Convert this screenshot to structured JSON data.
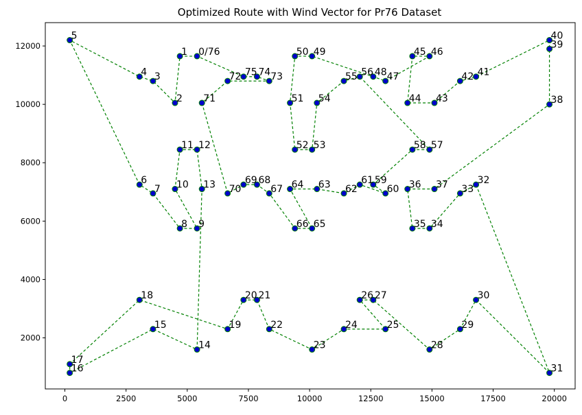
{
  "chart_data": {
    "type": "line",
    "title": "Optimized Route with Wind Vector for Pr76 Dataset",
    "xlabel": "",
    "ylabel": "",
    "xlim": [
      -800,
      20850
    ],
    "ylim": [
      250,
      12800
    ],
    "xticks": [
      0,
      2500,
      5000,
      7500,
      10000,
      12500,
      15000,
      17500,
      20000
    ],
    "yticks": [
      2000,
      4000,
      6000,
      8000,
      10000,
      12000
    ],
    "grid": false,
    "colors": {
      "route": "#008000",
      "point_fill": "#0000cc"
    },
    "points": [
      {
        "label": "0/76",
        "x": 5400,
        "y": 11650
      },
      {
        "label": "1",
        "x": 4700,
        "y": 11650
      },
      {
        "label": "2",
        "x": 4500,
        "y": 10050
      },
      {
        "label": "3",
        "x": 3600,
        "y": 10800
      },
      {
        "label": "4",
        "x": 3050,
        "y": 10950
      },
      {
        "label": "5",
        "x": 200,
        "y": 12200
      },
      {
        "label": "6",
        "x": 3050,
        "y": 7250
      },
      {
        "label": "7",
        "x": 3600,
        "y": 6950
      },
      {
        "label": "8",
        "x": 4700,
        "y": 5750
      },
      {
        "label": "9",
        "x": 5400,
        "y": 5750
      },
      {
        "label": "10",
        "x": 4500,
        "y": 7100
      },
      {
        "label": "11",
        "x": 4700,
        "y": 8450
      },
      {
        "label": "12",
        "x": 5400,
        "y": 8450
      },
      {
        "label": "13",
        "x": 5600,
        "y": 7100
      },
      {
        "label": "14",
        "x": 5400,
        "y": 1600
      },
      {
        "label": "15",
        "x": 3600,
        "y": 2300
      },
      {
        "label": "16",
        "x": 200,
        "y": 800
      },
      {
        "label": "17",
        "x": 200,
        "y": 1100
      },
      {
        "label": "18",
        "x": 3050,
        "y": 3300
      },
      {
        "label": "19",
        "x": 6650,
        "y": 2300
      },
      {
        "label": "20",
        "x": 7300,
        "y": 3300
      },
      {
        "label": "21",
        "x": 7850,
        "y": 3300
      },
      {
        "label": "22",
        "x": 8350,
        "y": 2300
      },
      {
        "label": "23",
        "x": 10100,
        "y": 1600
      },
      {
        "label": "24",
        "x": 11400,
        "y": 2300
      },
      {
        "label": "25",
        "x": 13100,
        "y": 2300
      },
      {
        "label": "26",
        "x": 12050,
        "y": 3300
      },
      {
        "label": "27",
        "x": 12600,
        "y": 3300
      },
      {
        "label": "28",
        "x": 14900,
        "y": 1600
      },
      {
        "label": "29",
        "x": 16150,
        "y": 2300
      },
      {
        "label": "30",
        "x": 16800,
        "y": 3300
      },
      {
        "label": "31",
        "x": 19800,
        "y": 800
      },
      {
        "label": "32",
        "x": 16800,
        "y": 7250
      },
      {
        "label": "33",
        "x": 16150,
        "y": 6950
      },
      {
        "label": "34",
        "x": 14900,
        "y": 5750
      },
      {
        "label": "35",
        "x": 14200,
        "y": 5750
      },
      {
        "label": "36",
        "x": 14000,
        "y": 7100
      },
      {
        "label": "37",
        "x": 15100,
        "y": 7100
      },
      {
        "label": "38",
        "x": 19800,
        "y": 10000
      },
      {
        "label": "39",
        "x": 19800,
        "y": 11900
      },
      {
        "label": "40",
        "x": 19800,
        "y": 12200
      },
      {
        "label": "41",
        "x": 16800,
        "y": 10950
      },
      {
        "label": "42",
        "x": 16150,
        "y": 10800
      },
      {
        "label": "43",
        "x": 15100,
        "y": 10050
      },
      {
        "label": "44",
        "x": 14000,
        "y": 10050
      },
      {
        "label": "45",
        "x": 14200,
        "y": 11650
      },
      {
        "label": "46",
        "x": 14900,
        "y": 11650
      },
      {
        "label": "47",
        "x": 13100,
        "y": 10800
      },
      {
        "label": "48",
        "x": 12600,
        "y": 10950
      },
      {
        "label": "49",
        "x": 10100,
        "y": 11650
      },
      {
        "label": "50",
        "x": 9400,
        "y": 11650
      },
      {
        "label": "51",
        "x": 9200,
        "y": 10050
      },
      {
        "label": "52",
        "x": 9400,
        "y": 8450
      },
      {
        "label": "53",
        "x": 10100,
        "y": 8450
      },
      {
        "label": "54",
        "x": 10300,
        "y": 10050
      },
      {
        "label": "55",
        "x": 11400,
        "y": 10800
      },
      {
        "label": "56",
        "x": 12050,
        "y": 10950
      },
      {
        "label": "57",
        "x": 14900,
        "y": 8450
      },
      {
        "label": "58",
        "x": 14200,
        "y": 8450
      },
      {
        "label": "59",
        "x": 12600,
        "y": 7250
      },
      {
        "label": "60",
        "x": 13100,
        "y": 6950
      },
      {
        "label": "61",
        "x": 12050,
        "y": 7250
      },
      {
        "label": "62",
        "x": 11400,
        "y": 6950
      },
      {
        "label": "63",
        "x": 10300,
        "y": 7100
      },
      {
        "label": "64",
        "x": 9200,
        "y": 7100
      },
      {
        "label": "65",
        "x": 10100,
        "y": 5750
      },
      {
        "label": "66",
        "x": 9400,
        "y": 5750
      },
      {
        "label": "67",
        "x": 8350,
        "y": 6950
      },
      {
        "label": "68",
        "x": 7850,
        "y": 7250
      },
      {
        "label": "69",
        "x": 7300,
        "y": 7250
      },
      {
        "label": "70",
        "x": 6650,
        "y": 6950
      },
      {
        "label": "71",
        "x": 5600,
        "y": 10050
      },
      {
        "label": "72",
        "x": 6650,
        "y": 10800
      },
      {
        "label": "73",
        "x": 8350,
        "y": 10800
      },
      {
        "label": "74",
        "x": 7850,
        "y": 10950
      },
      {
        "label": "75",
        "x": 7300,
        "y": 10950
      }
    ],
    "route": [
      "0/76",
      "1",
      "2",
      "3",
      "4",
      "5",
      "6",
      "7",
      "8",
      "9",
      "10",
      "11",
      "12",
      "13",
      "14",
      "15",
      "16",
      "17",
      "18",
      "19",
      "20",
      "21",
      "22",
      "23",
      "24",
      "25",
      "26",
      "27",
      "28",
      "29",
      "30",
      "31",
      "32",
      "33",
      "34",
      "35",
      "36",
      "37",
      "38",
      "39",
      "40",
      "41",
      "42",
      "43",
      "44",
      "45",
      "46",
      "47",
      "48",
      "49",
      "50",
      "51",
      "52",
      "53",
      "54",
      "55",
      "56",
      "57",
      "58",
      "59",
      "60",
      "61",
      "62",
      "63",
      "64",
      "65",
      "66",
      "67",
      "68",
      "69",
      "70",
      "71",
      "72",
      "73",
      "74",
      "75",
      "0/76"
    ]
  }
}
